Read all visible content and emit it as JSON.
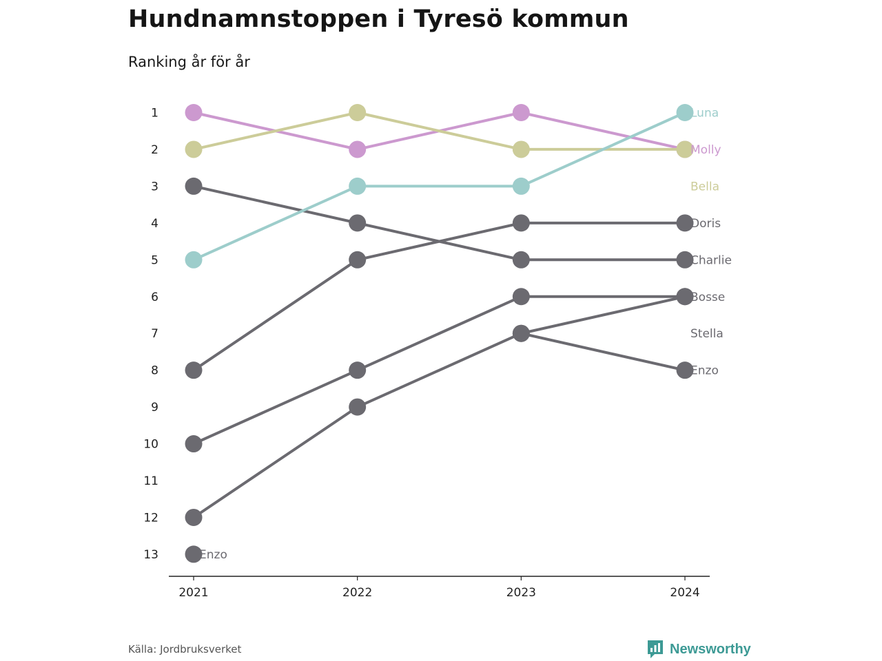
{
  "header": {
    "title": "Hundnamnstoppen i Tyresö kommun",
    "subtitle": "Ranking år för år"
  },
  "footer": {
    "source": "Källa: Jordbruksverket",
    "brand": "Newsworthy"
  },
  "colors": {
    "Luna": "#9dcdcb",
    "Molly": "#cc99cf",
    "Bella": "#cccc99",
    "Other": "#6b6a70",
    "axis": "#222222",
    "brand": "#3d9a95"
  },
  "chart_data": {
    "type": "line",
    "title": "Hundnamnstoppen i Tyresö kommun",
    "subtitle": "Ranking år för år",
    "xlabel": "",
    "ylabel": "",
    "x": [
      2021,
      2022,
      2023,
      2024
    ],
    "y_ticks": [
      1,
      2,
      3,
      4,
      5,
      6,
      7,
      8,
      9,
      10,
      11,
      12,
      13
    ],
    "ylim": [
      1,
      13
    ],
    "y_inverted": true,
    "grid": false,
    "series": [
      {
        "label": "Molly",
        "color_key": "Molly",
        "values": [
          1,
          2,
          1,
          2
        ],
        "label_rank": 2
      },
      {
        "label": "Bella",
        "color_key": "Bella",
        "values": [
          2,
          1,
          2,
          2
        ],
        "label_rank": 3
      },
      {
        "label": "Luna",
        "color_key": "Luna",
        "values": [
          5,
          3,
          3,
          1
        ],
        "label_rank": 1
      },
      {
        "label": "Charlie",
        "color_key": "Other",
        "values": [
          3,
          4,
          5,
          5
        ],
        "label_rank": 5
      },
      {
        "label": "Doris",
        "color_key": "Other",
        "values": [
          8,
          5,
          4,
          4
        ],
        "label_rank": 4
      },
      {
        "label": "Bosse",
        "color_key": "Other",
        "values": [
          10,
          8,
          6,
          6
        ],
        "label_rank": 6
      },
      {
        "label": "Stella",
        "color_key": "Other",
        "values": [
          12,
          9,
          7,
          6
        ],
        "label_rank": 7
      },
      {
        "label": "Enzo",
        "color_key": "Other",
        "values": [
          13,
          null,
          7,
          8
        ],
        "label_rank": 8
      }
    ],
    "extra_labels": [
      {
        "text": "Enzo",
        "x": 2021,
        "rank": 13
      }
    ]
  }
}
